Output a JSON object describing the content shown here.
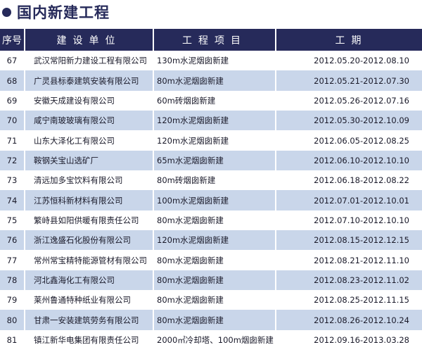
{
  "title": "国内新建工程",
  "colors": {
    "header": "#262a5a",
    "stripe": "#c9d6ea"
  },
  "table": {
    "headers": [
      "序号",
      "建设单位",
      "工程项目",
      "工期"
    ],
    "rows": [
      {
        "no": "67",
        "unit": "武汉常阳新力建设工程有限公司",
        "project": "130m水泥烟囱新建",
        "period": "2012.05.20-2012.08.10"
      },
      {
        "no": "68",
        "unit": "广灵县标泰建筑安装有限公司",
        "project": "80m水泥烟囱新建",
        "period": "2012.05.21-2012.07.30"
      },
      {
        "no": "69",
        "unit": "安徽天成建设有限公司",
        "project": "60m砖烟囱新建",
        "period": "2012.05.26-2012.07.16"
      },
      {
        "no": "70",
        "unit": "咸宁南玻玻璃有限公司",
        "project": "120m水泥烟囱新建",
        "period": "2012.05.30-2012.10.09"
      },
      {
        "no": "71",
        "unit": "山东大泽化工有限公司",
        "project": "120m水泥烟囱新建",
        "period": "2012.06.05-2012.08.25"
      },
      {
        "no": "72",
        "unit": "鞍钢关宝山选矿厂",
        "project": "65m水泥烟囱新建",
        "period": "2012.06.10-2012.10.10"
      },
      {
        "no": "73",
        "unit": "清远加多宝饮料有限公司",
        "project": "80m砖烟囱新建",
        "period": "2012.06.18-2012.08.22"
      },
      {
        "no": "74",
        "unit": "江苏恒科新材料有限公司",
        "project": "100m水泥烟囱新建",
        "period": "2012.07.01-2012.10.01"
      },
      {
        "no": "75",
        "unit": "繁峙县如阳供暖有限责任公司",
        "project": "80m水泥烟囱新建",
        "period": "2012.07.10-2012.10.10"
      },
      {
        "no": "76",
        "unit": "浙江逸盛石化股份有限公司",
        "project": "120m水泥烟囱新建",
        "period": "2012.08.15-2012.12.15"
      },
      {
        "no": "77",
        "unit": "常州常宝精特能源管材有限公司",
        "project": "80m水泥烟囱新建",
        "period": "2012.08.21-2012.11.10"
      },
      {
        "no": "78",
        "unit": "河北鑫海化工有限公司",
        "project": "80m水泥烟囱新建",
        "period": "2012.08.23-2012.11.02"
      },
      {
        "no": "79",
        "unit": "莱州鲁通特种纸业有限公司",
        "project": "80m水泥烟囱新建",
        "period": "2012.08.25-2012.11.15"
      },
      {
        "no": "80",
        "unit": "甘肃一安装建筑劳务有限公司",
        "project": "80m水泥烟囱新建",
        "period": "2012.08.26-2012.10.24"
      },
      {
        "no": "81",
        "unit": "镇江新华电集团有限责任公司",
        "project": "2000㎡冷却塔、100m烟囱新建",
        "period": "2012.09.16-2013.03.28"
      }
    ]
  }
}
